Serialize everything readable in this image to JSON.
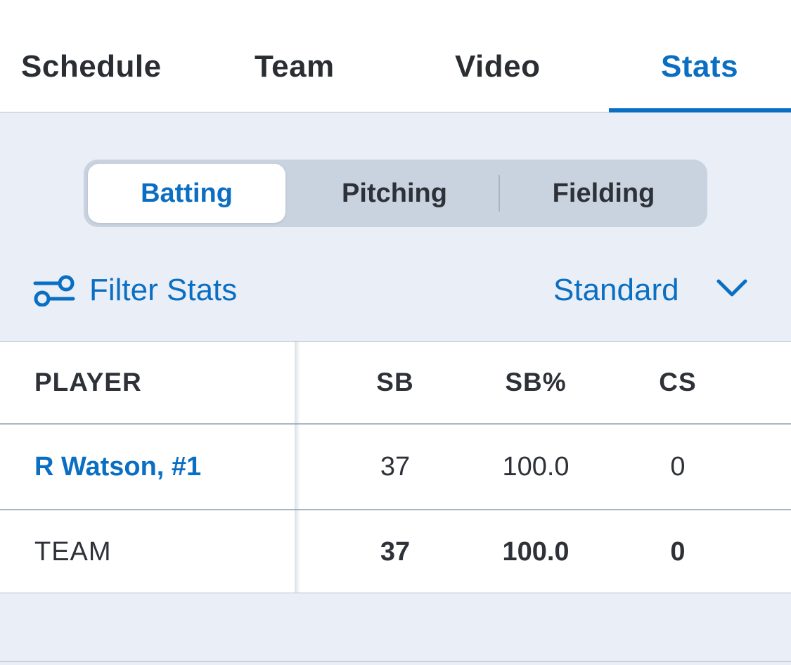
{
  "tabs": {
    "schedule": "Schedule",
    "team": "Team",
    "video": "Video",
    "stats": "Stats",
    "active": "Stats"
  },
  "segments": {
    "batting": "Batting",
    "pitching": "Pitching",
    "fielding": "Fielding",
    "selected": "Batting"
  },
  "filter": {
    "label": "Filter Stats",
    "icon": "filter-sliders-icon"
  },
  "view_select": {
    "value": "Standard",
    "icon": "chevron-down-icon"
  },
  "table": {
    "columns": [
      "PLAYER",
      "SB",
      "SB%",
      "CS"
    ],
    "rows": [
      {
        "player": "R Watson, #1",
        "sb": "37",
        "sbp": "100.0",
        "cs": "0"
      }
    ],
    "total": {
      "player": "TEAM",
      "sb": "37",
      "sbp": "100.0",
      "cs": "0"
    }
  },
  "colors": {
    "accent": "#0a6fc2",
    "background": "#e9eef7",
    "text": "#2e3238",
    "segment_track": "#c9d3df"
  }
}
